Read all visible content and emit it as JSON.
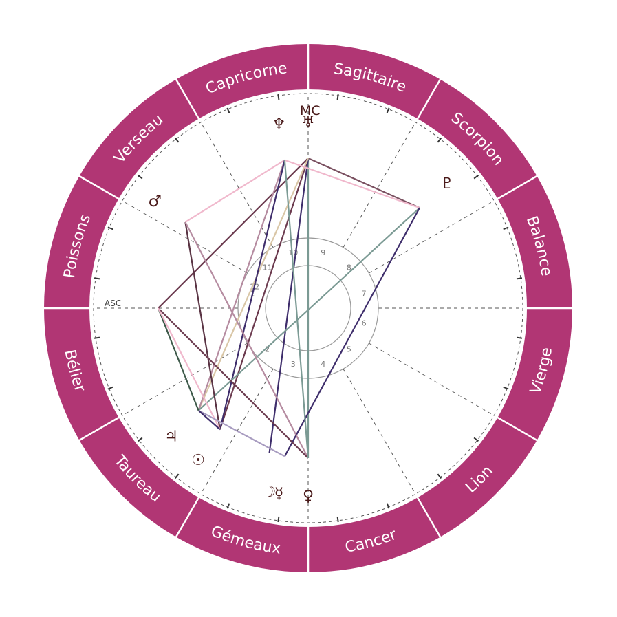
{
  "colors": {
    "ring": "#b13674",
    "ring_divider": "#ffffff",
    "sign_text": "#ffffff",
    "planet": "#4a1a1a",
    "dash": "#555555",
    "inner_circle": "#9a9a9a"
  },
  "signs": [
    {
      "name": "Sagittaire",
      "angle": 75
    },
    {
      "name": "Scorpion",
      "angle": 45
    },
    {
      "name": "Balance",
      "angle": 15
    },
    {
      "name": "Vierge",
      "angle": -15
    },
    {
      "name": "Lion",
      "angle": -45
    },
    {
      "name": "Cancer",
      "angle": -75
    },
    {
      "name": "Gémeaux",
      "angle": -105
    },
    {
      "name": "Taureau",
      "angle": -135
    },
    {
      "name": "Bélier",
      "angle": -165
    },
    {
      "name": "Poissons",
      "angle": 165
    },
    {
      "name": "Verseau",
      "angle": 135
    },
    {
      "name": "Capricorne",
      "angle": 105
    }
  ],
  "sign_boundaries": [
    90,
    60,
    30,
    0,
    -30,
    -60,
    -90,
    -120,
    -150,
    180,
    150,
    120
  ],
  "house_cusps": [
    180,
    150,
    120,
    90,
    60,
    30,
    0,
    -30,
    -60,
    -90,
    -120,
    -150
  ],
  "houses": [
    {
      "label": "1",
      "angle": 165
    },
    {
      "label": "2",
      "angle": -135
    },
    {
      "label": "3",
      "angle": -105
    },
    {
      "label": "4",
      "angle": -75
    },
    {
      "label": "5",
      "angle": -45
    },
    {
      "label": "6",
      "angle": -15
    },
    {
      "label": "7",
      "angle": 15
    },
    {
      "label": "8",
      "angle": 45
    },
    {
      "label": "9",
      "angle": 75
    },
    {
      "label": "10",
      "angle": 105
    },
    {
      "label": "11",
      "angle": 135
    },
    {
      "label": "12",
      "angle": 158
    }
  ],
  "axes": {
    "asc_label": "ASC",
    "mc_label": "MC"
  },
  "planets": [
    {
      "name": "neptune",
      "glyph": "♆",
      "angle": 99
    },
    {
      "name": "uranus",
      "glyph": "♅",
      "angle": 90
    },
    {
      "name": "pluto",
      "glyph": "♇",
      "angle": 42
    },
    {
      "name": "mars",
      "glyph": "♂",
      "angle": 145
    },
    {
      "name": "jupiter",
      "glyph": "♃",
      "angle": -137
    },
    {
      "name": "sun",
      "glyph": "☉",
      "angle": -126
    },
    {
      "name": "moon",
      "glyph": "☽",
      "angle": -102
    },
    {
      "name": "mercury",
      "glyph": "☿",
      "angle": -99
    },
    {
      "name": "venus",
      "glyph": "♀",
      "angle": -90
    }
  ],
  "aspects": [
    {
      "from": 90,
      "to": 180,
      "color": "#6b3a4e"
    },
    {
      "from": 90,
      "to": -126,
      "color": "#6b3a4e"
    },
    {
      "from": 90,
      "to": 42,
      "color": "#7a5060"
    },
    {
      "from": 90,
      "to": -90,
      "color": "#7b9a94"
    },
    {
      "from": 90,
      "to": -105,
      "color": "#3e2d6b"
    },
    {
      "from": 90,
      "to": -137,
      "color": "#d9c6a6"
    },
    {
      "from": 99,
      "to": -137,
      "color": "#b58ba0"
    },
    {
      "from": 99,
      "to": 145,
      "color": "#f0b8cc"
    },
    {
      "from": 99,
      "to": 42,
      "color": "#f0b8cc"
    },
    {
      "from": 99,
      "to": -126,
      "color": "#3e2d6b"
    },
    {
      "from": 42,
      "to": -137,
      "color": "#7b9a94"
    },
    {
      "from": 42,
      "to": -99,
      "color": "#3e2d6b"
    },
    {
      "from": 145,
      "to": -126,
      "color": "#5a3444"
    },
    {
      "from": 145,
      "to": -90,
      "color": "#b58ba0"
    },
    {
      "from": 180,
      "to": -137,
      "color": "#3e5a4a"
    },
    {
      "from": 180,
      "to": -90,
      "color": "#6b3a4e"
    },
    {
      "from": 180,
      "to": -126,
      "color": "#f0b8cc"
    },
    {
      "from": -137,
      "to": -99,
      "color": "#a89cc0"
    },
    {
      "from": -137,
      "to": -126,
      "color": "#3e2d6b"
    },
    {
      "from": -90,
      "to": 99,
      "color": "#7b9a94"
    }
  ]
}
